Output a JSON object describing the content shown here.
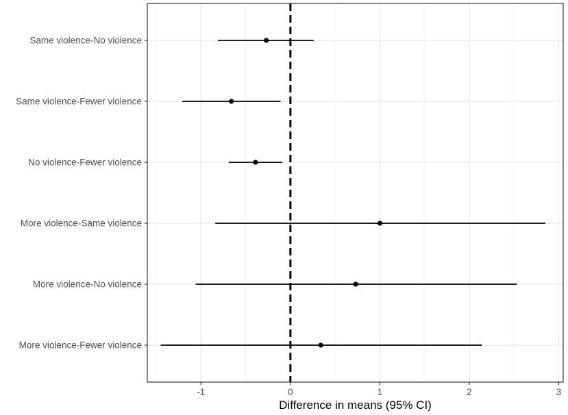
{
  "chart_data": {
    "type": "scatter",
    "orientation": "horizontal",
    "title": "",
    "xlabel": "Difference in means (95% CI)",
    "ylabel": "",
    "xlim": [
      -1.6,
      3.05
    ],
    "x_ticks": [
      -1,
      0,
      1,
      2,
      3
    ],
    "x_tick_labels": [
      "-1",
      "0",
      "1",
      "2",
      "3"
    ],
    "reference_line": {
      "x": 0,
      "style": "dashed"
    },
    "grid": true,
    "legend": "none",
    "categories": [
      "Same violence-No violence",
      "Same violence-Fewer violence",
      "No violence-Fewer violence",
      "More violence-Same violence",
      "More violence-No violence",
      "More violence-Fewer violence"
    ],
    "estimates": [
      -0.27,
      -0.66,
      -0.39,
      1.0,
      0.73,
      0.34
    ],
    "ci_lower": [
      -0.81,
      -1.21,
      -0.69,
      -0.84,
      -1.06,
      -1.45
    ],
    "ci_upper": [
      0.26,
      -0.11,
      -0.09,
      2.85,
      2.53,
      2.14
    ],
    "colors": {
      "marks": "#000000",
      "grid": "#ebebeb",
      "border": "#333333",
      "background": "#ffffff"
    }
  }
}
